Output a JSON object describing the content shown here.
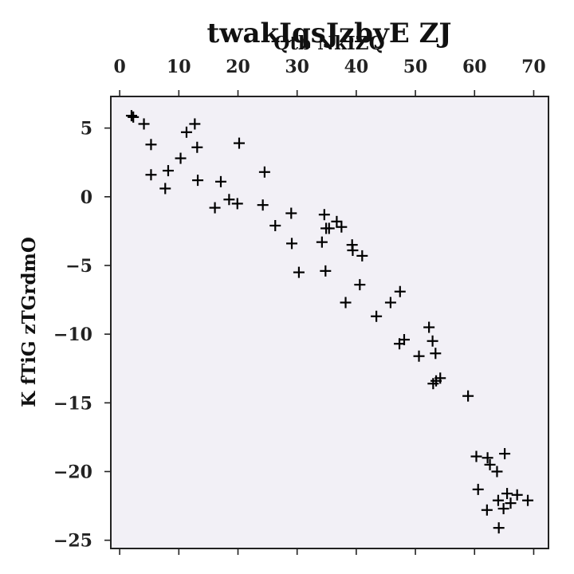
{
  "chart_data": {
    "type": "scatter",
    "title": "twakIqsJzbyE ZJ",
    "xlabel": "Qtb NkIZQ",
    "ylabel": "K fTiG zTGrdmO",
    "xlim": [
      -1.5,
      72.5
    ],
    "ylim": [
      -25.6,
      7.3
    ],
    "x_axis_position": "top",
    "grid": false,
    "marker": "plus",
    "color": "#000000",
    "background": "#f2f0f6",
    "xticks": [
      0,
      10,
      20,
      30,
      40,
      50,
      60,
      70
    ],
    "xtick_labels": [
      "0",
      "10",
      "20",
      "30",
      "40",
      "50",
      "60",
      "70"
    ],
    "yticks": [
      5,
      0,
      -5,
      -10,
      -15,
      -20,
      -25
    ],
    "ytick_labels": [
      "5",
      "0",
      "−5",
      "−10",
      "−15",
      "−20",
      "−25"
    ],
    "points": [
      [
        2.0,
        5.9
      ],
      [
        2.3,
        5.8
      ],
      [
        4.1,
        5.3
      ],
      [
        5.3,
        3.8
      ],
      [
        5.3,
        1.6
      ],
      [
        8.2,
        1.9
      ],
      [
        7.7,
        0.6
      ],
      [
        10.3,
        2.8
      ],
      [
        11.3,
        4.7
      ],
      [
        12.7,
        5.3
      ],
      [
        13.1,
        3.6
      ],
      [
        13.2,
        1.2
      ],
      [
        17.1,
        1.1
      ],
      [
        16.1,
        -0.8
      ],
      [
        18.5,
        -0.2
      ],
      [
        19.9,
        -0.5
      ],
      [
        20.2,
        3.9
      ],
      [
        24.5,
        1.8
      ],
      [
        24.2,
        -0.6
      ],
      [
        26.3,
        -2.1
      ],
      [
        29.0,
        -1.2
      ],
      [
        29.1,
        -3.4
      ],
      [
        30.3,
        -5.5
      ],
      [
        34.2,
        -3.3
      ],
      [
        34.6,
        -1.3
      ],
      [
        34.9,
        -2.3
      ],
      [
        35.4,
        -2.3
      ],
      [
        36.7,
        -1.8
      ],
      [
        37.5,
        -2.2
      ],
      [
        34.8,
        -5.4
      ],
      [
        39.3,
        -3.5
      ],
      [
        39.4,
        -3.9
      ],
      [
        41.0,
        -4.3
      ],
      [
        38.2,
        -7.7
      ],
      [
        40.6,
        -6.4
      ],
      [
        43.4,
        -8.7
      ],
      [
        45.8,
        -7.7
      ],
      [
        47.4,
        -6.9
      ],
      [
        47.3,
        -10.7
      ],
      [
        48.1,
        -10.4
      ],
      [
        50.6,
        -11.6
      ],
      [
        52.3,
        -9.5
      ],
      [
        52.9,
        -10.5
      ],
      [
        53.4,
        -11.4
      ],
      [
        53.0,
        -13.6
      ],
      [
        53.5,
        -13.4
      ],
      [
        54.2,
        -13.2
      ],
      [
        58.9,
        -14.5
      ],
      [
        60.3,
        -18.9
      ],
      [
        60.6,
        -21.3
      ],
      [
        62.2,
        -19.0
      ],
      [
        62.6,
        -19.5
      ],
      [
        63.8,
        -20.0
      ],
      [
        65.1,
        -18.7
      ],
      [
        62.1,
        -22.8
      ],
      [
        64.0,
        -22.1
      ],
      [
        64.9,
        -22.7
      ],
      [
        65.5,
        -21.6
      ],
      [
        66.1,
        -22.3
      ],
      [
        67.2,
        -21.7
      ],
      [
        69.0,
        -22.1
      ],
      [
        64.1,
        -24.1
      ]
    ]
  }
}
